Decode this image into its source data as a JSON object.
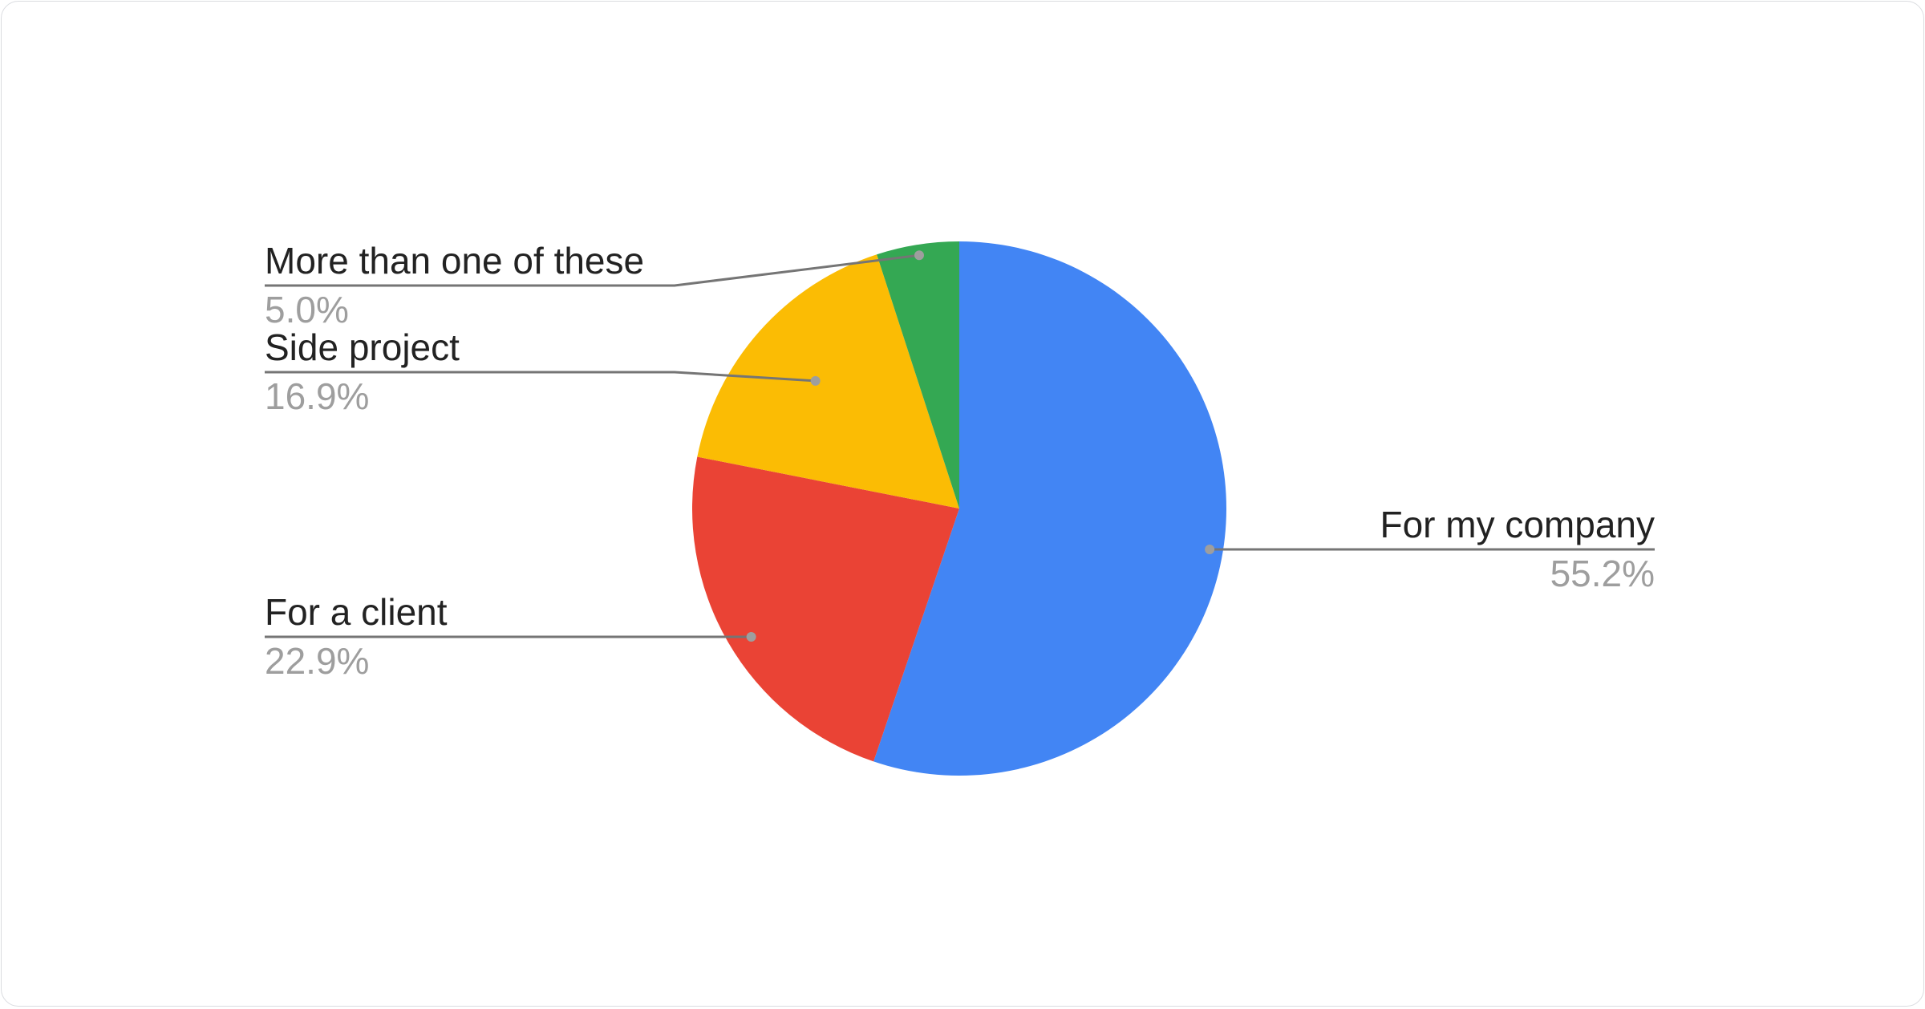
{
  "chart_data": {
    "type": "pie",
    "title": "",
    "slices": [
      {
        "label": "For my company",
        "value": 55.2,
        "display": "55.2%",
        "color": "#4285f4"
      },
      {
        "label": "For a client",
        "value": 22.9,
        "display": "22.9%",
        "color": "#ea4335"
      },
      {
        "label": "Side project",
        "value": 16.9,
        "display": "16.9%",
        "color": "#fbbc04"
      },
      {
        "label": "More than one of these",
        "value": 5.0,
        "display": "5.0%",
        "color": "#34a853"
      }
    ],
    "start_angle": "top, clockwise",
    "legend": "labeled callouts"
  }
}
